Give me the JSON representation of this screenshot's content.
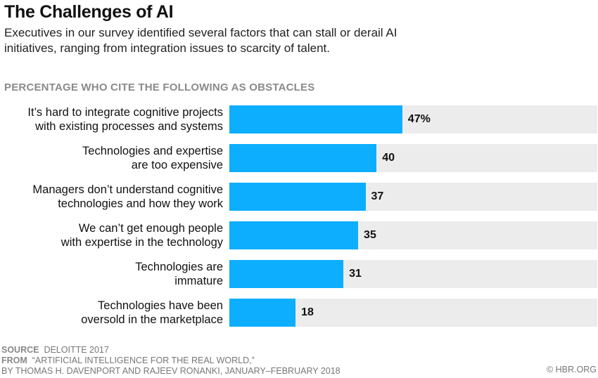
{
  "chart_data": {
    "type": "bar",
    "orientation": "horizontal",
    "title": "The Challenges of AI",
    "subtitle": "Executives in our survey identified several factors that can stall or derail AI initiatives, ranging from integration issues to scarcity of talent.",
    "caption": "PERCENTAGE WHO CITE THE FOLLOWING AS OBSTACLES",
    "categories": [
      [
        "It’s hard to integrate cognitive projects",
        "with existing processes and systems"
      ],
      [
        "Technologies and expertise",
        "are too expensive"
      ],
      [
        "Managers don’t understand cognitive",
        "technologies and how they work"
      ],
      [
        "We can’t get enough people",
        "with expertise in the technology"
      ],
      [
        "Technologies are",
        "immature"
      ],
      [
        "Technologies have been",
        "oversold in the marketplace"
      ]
    ],
    "values": [
      47,
      40,
      37,
      35,
      31,
      18
    ],
    "data_labels": [
      "47%",
      "40",
      "37",
      "35",
      "31",
      "18"
    ],
    "xlim": [
      0,
      100
    ],
    "grid": false,
    "bar_color": "#0daefd",
    "track_color": "#ececec"
  },
  "footer": {
    "source_label": "SOURCE",
    "source": "DELOITTE 2017",
    "from_label": "FROM",
    "from": "“ARTIFICIAL INTELLIGENCE FOR THE REAL WORLD,”",
    "byline": "BY THOMAS H. DAVENPORT AND RAJEEV RONANKI, JANUARY–FEBRUARY 2018",
    "copyright": "© HBR.ORG"
  }
}
